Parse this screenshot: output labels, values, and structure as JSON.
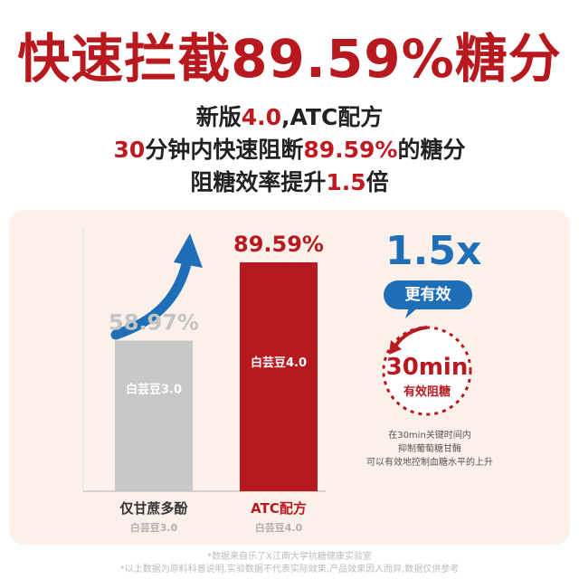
{
  "headline": {
    "part1": "快速拦截",
    "value": "89.59%",
    "part2": "糖分"
  },
  "subtitle": {
    "line1_pre": "新版",
    "line1_version": "4.0",
    "line1_post": ",ATC配方",
    "line2_minutes": "30",
    "line2_mid": "分钟内快速阻断",
    "line2_percent": "89.59%",
    "line2_post": "的糖分",
    "line3_pre": "阻糖效率提升",
    "line3_factor": "1.5",
    "line3_post": "倍"
  },
  "chart_data": {
    "type": "bar",
    "categories": [
      "仅甘蔗多酚",
      "ATC配方"
    ],
    "category_sublabels": [
      "白芸豆3.0",
      "白芸豆4.0"
    ],
    "bar_labels": [
      "白芸豆3.0",
      "白芸豆4.0"
    ],
    "values": [
      58.97,
      89.59
    ],
    "value_labels": [
      "58.97%",
      "89.59%"
    ],
    "ylim": [
      0,
      100
    ],
    "colors": [
      "#c8c8c8",
      "#b8191e"
    ]
  },
  "annotation": {
    "multiplier": "1.5x",
    "pill": "更有效",
    "clock_big": "30min",
    "clock_small": "有效阻糖",
    "desc1": "在30min关键时间内",
    "desc2": "抑制葡萄糖甘酶",
    "desc3": "可以有效地控制血糖水平的上升"
  },
  "footnotes": {
    "line1": "*数据来自乐了X江南大学抗糖健康实验室",
    "line2": "*以上数据为原料科普说明,实验数据不代表实际效果,产品效果因人而异,数据仅供参考"
  },
  "colors": {
    "red": "#b8191e",
    "blue": "#1f6fb8",
    "grey_bar": "#c8c8c8",
    "panel": "#fbf1ea"
  }
}
